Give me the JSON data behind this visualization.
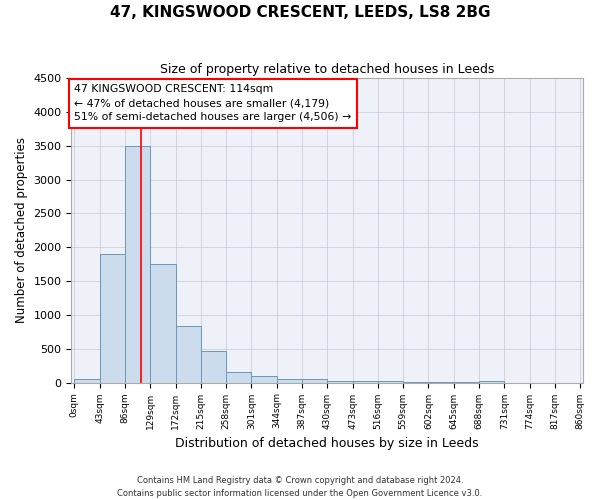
{
  "title": "47, KINGSWOOD CRESCENT, LEEDS, LS8 2BG",
  "subtitle": "Size of property relative to detached houses in Leeds",
  "xlabel": "Distribution of detached houses by size in Leeds",
  "ylabel": "Number of detached properties",
  "bar_color": "#ccdcec",
  "bar_edge_color": "#6699bb",
  "tick_labels": [
    "0sqm",
    "43sqm",
    "86sqm",
    "129sqm",
    "172sqm",
    "215sqm",
    "258sqm",
    "301sqm",
    "344sqm",
    "387sqm",
    "430sqm",
    "473sqm",
    "516sqm",
    "559sqm",
    "602sqm",
    "645sqm",
    "688sqm",
    "731sqm",
    "774sqm",
    "817sqm",
    "860sqm"
  ],
  "bar_values": [
    50,
    1900,
    3500,
    1750,
    840,
    460,
    160,
    90,
    50,
    50,
    30,
    20,
    20,
    10,
    5,
    5,
    30,
    0,
    0,
    0
  ],
  "bin_width": 43,
  "bin_starts": [
    0,
    43,
    86,
    129,
    172,
    215,
    258,
    301,
    344,
    387,
    430,
    473,
    516,
    559,
    602,
    645,
    688,
    731,
    774,
    817
  ],
  "red_line_x": 114,
  "annotation_text": "47 KINGSWOOD CRESCENT: 114sqm\n← 47% of detached houses are smaller (4,179)\n51% of semi-detached houses are larger (4,506) →",
  "ylim": [
    0,
    4500
  ],
  "yticks": [
    0,
    500,
    1000,
    1500,
    2000,
    2500,
    3000,
    3500,
    4000,
    4500
  ],
  "footer": "Contains HM Land Registry data © Crown copyright and database right 2024.\nContains public sector information licensed under the Open Government Licence v3.0.",
  "bg_color": "#eef2f8",
  "grid_color": "#c8c8d8",
  "fig_bg": "#ffffff"
}
